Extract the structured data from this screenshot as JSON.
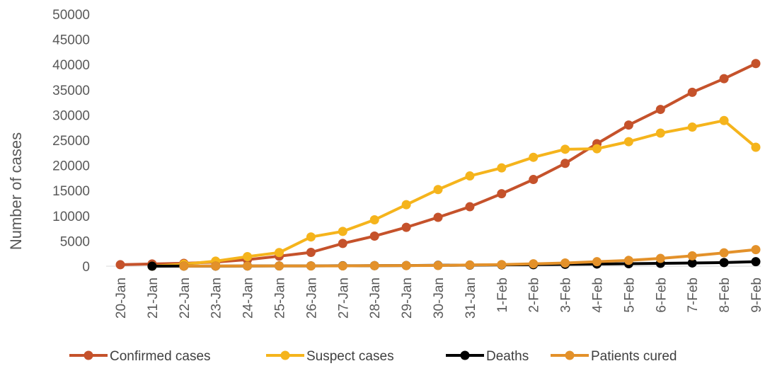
{
  "chart_data": {
    "type": "line",
    "title": "",
    "xlabel": "",
    "ylabel": "Number of cases",
    "ylim": [
      0,
      50000
    ],
    "yticks": [
      0,
      5000,
      10000,
      15000,
      20000,
      25000,
      30000,
      35000,
      40000,
      45000,
      50000
    ],
    "ytick_labels": [
      "0",
      "5000",
      "10000",
      "15000",
      "20000",
      "25000",
      "30000",
      "35000",
      "40000",
      "45000",
      "50000"
    ],
    "categories": [
      "20-Jan",
      "21-Jan",
      "22-Jan",
      "23-Jan",
      "24-Jan",
      "25-Jan",
      "26-Jan",
      "27-Jan",
      "28-Jan",
      "29-Jan",
      "30-Jan",
      "31-Jan",
      "1-Feb",
      "2-Feb",
      "3-Feb",
      "4-Feb",
      "5-Feb",
      "6-Feb",
      "7-Feb",
      "8-Feb",
      "9-Feb"
    ],
    "grid": false,
    "legend_position": "bottom",
    "series": [
      {
        "name": "Confirmed cases",
        "color": "#C5522B",
        "values": [
          290,
          440,
          570,
          830,
          1290,
          1980,
          2740,
          4510,
          5970,
          7710,
          9690,
          11790,
          14380,
          17200,
          20400,
          24300,
          28000,
          31100,
          34500,
          37200,
          40200
        ]
      },
      {
        "name": "Suspect cases",
        "color": "#F5B41C",
        "values": [
          null,
          0,
          400,
          1000,
          1900,
          2700,
          5800,
          6900,
          9200,
          12200,
          15200,
          17900,
          19500,
          21600,
          23200,
          23300,
          24700,
          26400,
          27600,
          28900,
          23600
        ]
      },
      {
        "name": "Deaths",
        "color": "#000000",
        "values": [
          null,
          0,
          20,
          20,
          40,
          50,
          60,
          80,
          110,
          130,
          170,
          210,
          260,
          300,
          360,
          430,
          490,
          560,
          640,
          720,
          900
        ]
      },
      {
        "name": "Patients cured",
        "color": "#E3912A",
        "values": [
          null,
          null,
          20,
          30,
          40,
          50,
          50,
          60,
          100,
          120,
          140,
          240,
          320,
          470,
          630,
          890,
          1150,
          1540,
          2050,
          2650,
          3280
        ]
      }
    ]
  }
}
